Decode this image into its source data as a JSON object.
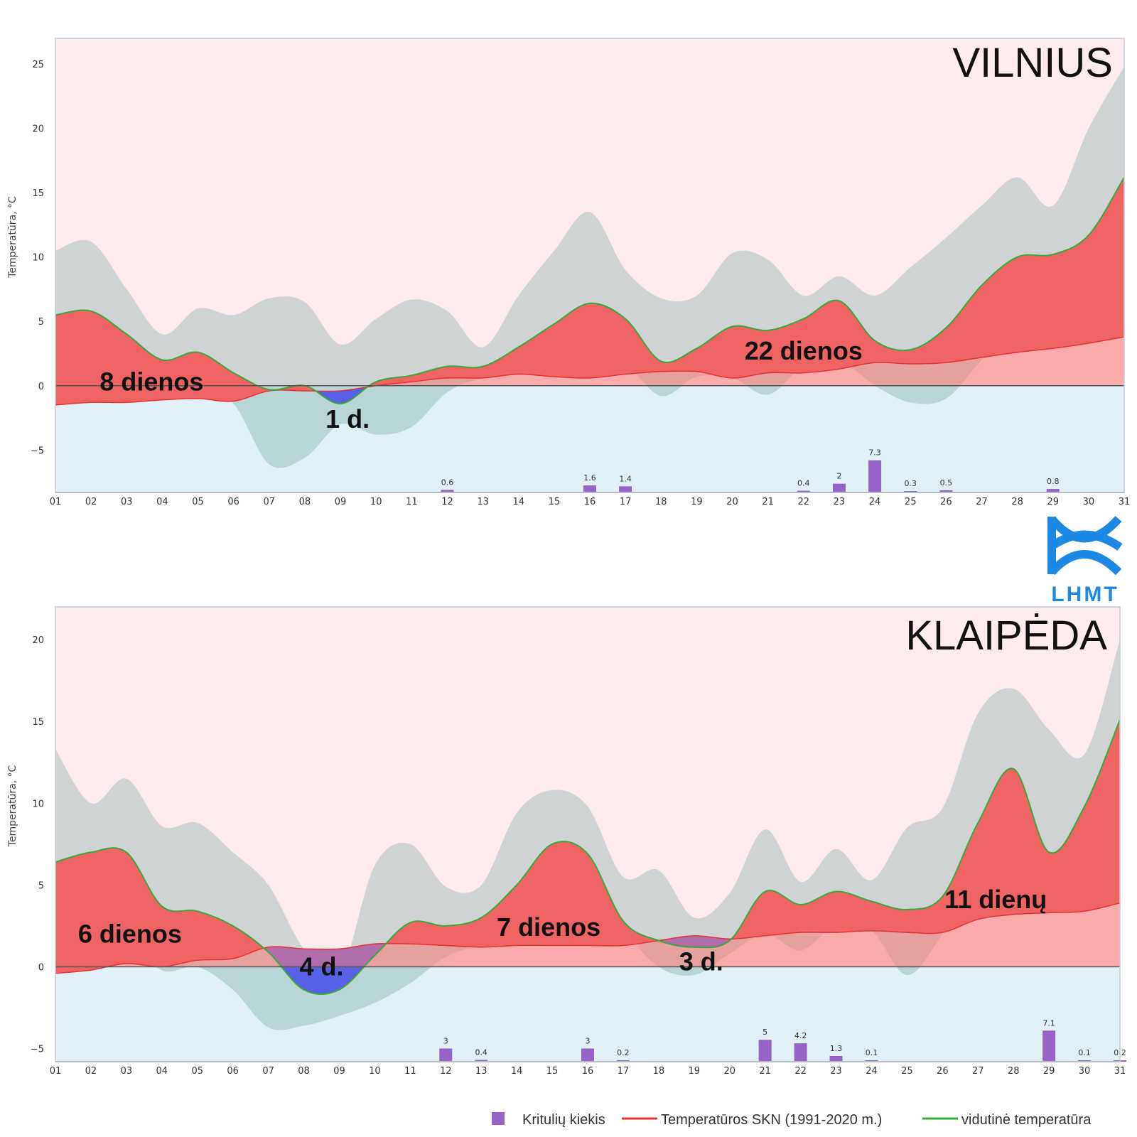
{
  "colors": {
    "warm_bg": "#fdecee",
    "cold_bg": "#e2f1f8",
    "range_band": "#cfd3d3",
    "range_band_cold": "#b9d5d6",
    "warm_fill": "#ef6363",
    "norm_fill": "#fb7777",
    "cold_fill": "#5860e8",
    "mean_line": "#3aa83a",
    "norm_line": "#e23333",
    "precip_bar": "#9664c6",
    "zero_line": "#555555",
    "logo": "#1e88e5"
  },
  "logo": {
    "text": "LHMT"
  },
  "legend": {
    "items": [
      {
        "key": "precip",
        "label": "Kritulių kiekis"
      },
      {
        "key": "norm",
        "label": "Temperatūros SKN (1991-2020 m.)"
      },
      {
        "key": "mean",
        "label": "vidutinė temperatūra"
      }
    ]
  },
  "chart_data": [
    {
      "type": "area",
      "title": "VILNIUS",
      "ylabel": "Temperatūra, °C",
      "ylim": [
        -8.3,
        27
      ],
      "yticks": [
        -5,
        0,
        5,
        10,
        15,
        20,
        25
      ],
      "yticklabels": [
        "−5",
        "0",
        "5",
        "10",
        "15",
        "20",
        "25"
      ],
      "x": [
        "01",
        "02",
        "03",
        "04",
        "05",
        "06",
        "07",
        "08",
        "09",
        "10",
        "11",
        "12",
        "13",
        "14",
        "15",
        "16",
        "17",
        "18",
        "19",
        "20",
        "21",
        "22",
        "23",
        "24",
        "25",
        "26",
        "27",
        "28",
        "29",
        "30",
        "31"
      ],
      "series": [
        {
          "key": "mean",
          "values": [
            5.5,
            5.8,
            4.0,
            2.0,
            2.6,
            1.0,
            -0.3,
            0.0,
            -1.4,
            0.3,
            0.8,
            1.5,
            1.5,
            3.0,
            4.8,
            6.4,
            5.2,
            1.9,
            2.9,
            4.6,
            4.3,
            5.2,
            6.6,
            3.5,
            2.8,
            4.5,
            7.8,
            10.0,
            10.2,
            11.7,
            16.2
          ]
        },
        {
          "key": "norm",
          "values": [
            -1.5,
            -1.3,
            -1.3,
            -1.1,
            -1.0,
            -1.2,
            -0.4,
            -0.4,
            -0.4,
            0.0,
            0.3,
            0.6,
            0.6,
            0.9,
            0.7,
            0.6,
            0.9,
            1.1,
            1.1,
            0.6,
            1.0,
            1.0,
            1.3,
            1.8,
            1.7,
            1.8,
            2.2,
            2.6,
            2.9,
            3.3,
            3.8
          ]
        },
        {
          "key": "upper",
          "values": [
            10.5,
            11.2,
            7.5,
            4.0,
            6.0,
            5.5,
            6.8,
            6.5,
            3.2,
            5.2,
            6.7,
            5.8,
            3.0,
            7.0,
            10.5,
            13.5,
            9.0,
            6.8,
            7.0,
            10.3,
            9.8,
            7.0,
            8.5,
            7.0,
            9.2,
            11.5,
            14.0,
            16.2,
            14.0,
            20.0,
            24.8
          ]
        },
        {
          "key": "lower",
          "values": [
            2.7,
            1.3,
            0.2,
            -0.1,
            0.0,
            -1.4,
            -6.1,
            -5.6,
            -3.0,
            -3.8,
            -3.2,
            -0.5,
            0.6,
            0.9,
            1.4,
            2.7,
            1.7,
            -0.8,
            0.7,
            0.6,
            -0.7,
            1.5,
            2.0,
            0.0,
            -1.3,
            -1.0,
            2.0,
            4.8,
            7.0,
            5.5,
            10.5
          ]
        }
      ],
      "precipitation": [
        {
          "x": "12",
          "value": 0.6
        },
        {
          "x": "16",
          "value": 1.6
        },
        {
          "x": "17",
          "value": 1.4
        },
        {
          "x": "22",
          "value": 0.4
        },
        {
          "x": "23",
          "value": 2
        },
        {
          "x": "24",
          "value": 7.3
        },
        {
          "x": "25",
          "value": 0.3
        },
        {
          "x": "26",
          "value": 0.5
        },
        {
          "x": "29",
          "value": 0.8
        }
      ],
      "precip_max_value": 7.3,
      "precip_max_temp": -5.8,
      "annotations": [
        {
          "text": "8 dienos",
          "x": 3.7,
          "y": 0.3
        },
        {
          "text": "1 d.",
          "x": 9.2,
          "y": -2.6
        },
        {
          "text": "22 dienos",
          "x": 22.0,
          "y": 2.7
        }
      ]
    },
    {
      "type": "area",
      "title": "KLAIPĖDA",
      "ylabel": "Temperatūra, °C",
      "ylim": [
        -5.8,
        22
      ],
      "yticks": [
        -5,
        0,
        5,
        10,
        15,
        20
      ],
      "yticklabels": [
        "−5",
        "0",
        "5",
        "10",
        "15",
        "20"
      ],
      "x": [
        "01",
        "02",
        "03",
        "04",
        "05",
        "06",
        "07",
        "08",
        "09",
        "10",
        "11",
        "12",
        "13",
        "14",
        "15",
        "16",
        "17",
        "18",
        "19",
        "20",
        "21",
        "22",
        "23",
        "24",
        "25",
        "26",
        "27",
        "28",
        "29",
        "30",
        "31"
      ],
      "series": [
        {
          "key": "mean",
          "values": [
            6.4,
            7.0,
            7.0,
            3.7,
            3.4,
            2.5,
            0.9,
            -1.4,
            -1.4,
            0.7,
            2.7,
            2.5,
            3.0,
            5.0,
            7.5,
            6.9,
            2.8,
            1.6,
            1.2,
            1.6,
            4.6,
            3.8,
            4.6,
            4.0,
            3.5,
            4.3,
            8.8,
            12.1,
            7.0,
            9.8,
            15.1
          ]
        },
        {
          "key": "norm",
          "values": [
            -0.4,
            -0.2,
            0.2,
            0.0,
            0.4,
            0.5,
            1.2,
            1.1,
            1.1,
            1.4,
            1.4,
            1.3,
            1.2,
            1.3,
            1.3,
            1.3,
            1.3,
            1.6,
            1.9,
            1.7,
            1.9,
            2.1,
            2.1,
            2.2,
            2.1,
            2.1,
            2.9,
            3.2,
            3.3,
            3.4,
            3.9
          ]
        },
        {
          "key": "upper",
          "values": [
            13.3,
            10.0,
            11.5,
            8.6,
            8.8,
            7.0,
            5.0,
            1.1,
            -0.5,
            6.2,
            7.5,
            4.9,
            5.0,
            9.4,
            10.8,
            9.8,
            5.5,
            5.9,
            3.0,
            4.5,
            8.4,
            5.2,
            7.2,
            5.3,
            8.5,
            9.7,
            15.5,
            17.0,
            14.5,
            13.0,
            20.0
          ]
        },
        {
          "key": "lower",
          "values": [
            2.7,
            5.0,
            2.0,
            -0.2,
            0.0,
            -1.4,
            -3.7,
            -3.6,
            -3.0,
            -2.2,
            -1.0,
            0.6,
            1.3,
            1.5,
            5.0,
            5.5,
            2.3,
            0.0,
            -0.5,
            0.8,
            2.0,
            1.0,
            2.5,
            2.2,
            -0.5,
            2.0,
            5.5,
            7.0,
            6.7,
            6.5,
            10.5
          ]
        }
      ],
      "precipitation": [
        {
          "x": "12",
          "value": 3
        },
        {
          "x": "13",
          "value": 0.4
        },
        {
          "x": "16",
          "value": 3
        },
        {
          "x": "17",
          "value": 0.2
        },
        {
          "x": "21",
          "value": 5
        },
        {
          "x": "22",
          "value": 4.2
        },
        {
          "x": "23",
          "value": 1.3
        },
        {
          "x": "24",
          "value": 0.1
        },
        {
          "x": "29",
          "value": 7.1
        },
        {
          "x": "30",
          "value": 0.1
        },
        {
          "x": "31",
          "value": 0.2
        }
      ],
      "precip_max_value": 7.1,
      "precip_max_temp": -3.9,
      "annotations": [
        {
          "text": "6 dienos",
          "x": 3.1,
          "y": 2.0
        },
        {
          "text": "7 dienos",
          "x": 14.9,
          "y": 2.4
        },
        {
          "text": "3 d.",
          "x": 19.2,
          "y": 0.3
        },
        {
          "text": "4 d.",
          "x": 8.5,
          "y": 0.0
        },
        {
          "text": "11 dienų",
          "x": 27.5,
          "y": 4.1
        }
      ]
    }
  ]
}
